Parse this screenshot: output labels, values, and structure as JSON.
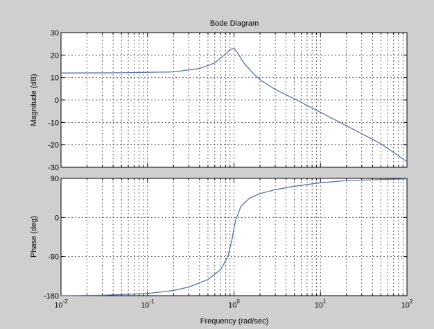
{
  "figure": {
    "background": "#cfcfcf",
    "line_color": "#5b6fa8"
  },
  "chart_data": [
    {
      "type": "line",
      "title": "Bode Diagram",
      "xlabel": "",
      "ylabel": "Magnitude (dB)",
      "xscale": "log",
      "xlim": [
        0.01,
        100
      ],
      "ylim": [
        -30,
        30
      ],
      "yticks": [
        -30,
        -20,
        -10,
        0,
        10,
        20,
        30
      ],
      "ytick_labels": [
        "-30",
        "-20",
        "-10",
        "0",
        "10",
        "20",
        "30"
      ],
      "grid": true,
      "series": [
        {
          "x": [
            0.01,
            0.05,
            0.1,
            0.2,
            0.4,
            0.6,
            0.8,
            0.9,
            1.0,
            1.1,
            1.3,
            1.6,
            2,
            3,
            5,
            10,
            20,
            50,
            100
          ],
          "values": [
            12,
            12.1,
            12.3,
            12.5,
            14,
            16.5,
            20.5,
            22.5,
            23,
            21,
            16.5,
            12.5,
            9,
            4.7,
            0.5,
            -5.5,
            -11.5,
            -19.5,
            -27.5
          ]
        }
      ]
    },
    {
      "type": "line",
      "title": "",
      "xlabel": "Frequency  (rad/sec)",
      "ylabel": "Phase (deg)",
      "xscale": "log",
      "xlim": [
        0.01,
        100
      ],
      "ylim": [
        -180,
        90
      ],
      "yticks": [
        -180,
        -90,
        0,
        90
      ],
      "ytick_labels": [
        "-180",
        "-90",
        "0",
        "90"
      ],
      "xtick_labels": [
        {
          "base": "10",
          "exp": "-2"
        },
        {
          "base": "10",
          "exp": "-1"
        },
        {
          "base": "10",
          "exp": "0"
        },
        {
          "base": "10",
          "exp": "1"
        },
        {
          "base": "10",
          "exp": "2"
        }
      ],
      "grid": true,
      "series": [
        {
          "x": [
            0.01,
            0.03,
            0.1,
            0.2,
            0.3,
            0.5,
            0.7,
            0.85,
            0.95,
            1.0,
            1.05,
            1.2,
            1.5,
            2,
            3,
            5,
            10,
            20,
            100
          ],
          "values": [
            -180,
            -179,
            -175,
            -168,
            -160,
            -143,
            -120,
            -90,
            -50,
            -25,
            -5,
            25,
            44,
            55,
            64,
            72,
            80,
            85,
            89
          ]
        }
      ]
    }
  ]
}
